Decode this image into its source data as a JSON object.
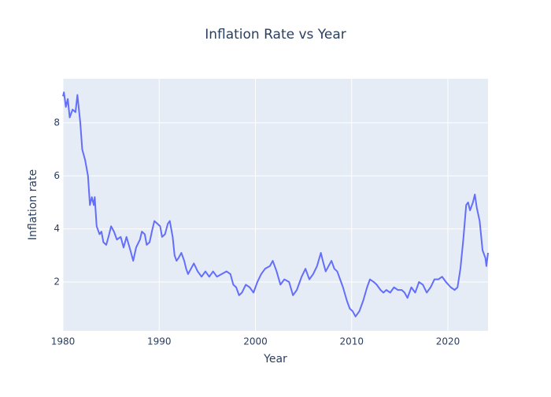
{
  "chart_data": {
    "type": "line",
    "title": "Inflation Rate vs Year",
    "x_label": "Year",
    "y_label": "Inflation rate",
    "x": [
      1980.0,
      1980.1,
      1980.3,
      1980.5,
      1980.7,
      1981.0,
      1981.3,
      1981.5,
      1981.8,
      1982.0,
      1982.3,
      1982.6,
      1982.8,
      1983.0,
      1983.2,
      1983.3,
      1983.5,
      1983.8,
      1984.0,
      1984.2,
      1984.5,
      1984.8,
      1985.0,
      1985.3,
      1985.6,
      1986.0,
      1986.3,
      1986.6,
      1987.0,
      1987.3,
      1987.6,
      1988.0,
      1988.2,
      1988.5,
      1988.7,
      1989.0,
      1989.3,
      1989.5,
      1989.8,
      1990.1,
      1990.3,
      1990.6,
      1990.9,
      1991.1,
      1991.4,
      1991.6,
      1991.8,
      1992.0,
      1992.3,
      1992.6,
      1992.8,
      1993.0,
      1993.3,
      1993.6,
      1994.0,
      1994.4,
      1994.8,
      1995.2,
      1995.6,
      1996.0,
      1996.5,
      1997.0,
      1997.4,
      1997.7,
      1998.0,
      1998.3,
      1998.6,
      1999.0,
      1999.4,
      1999.8,
      2000.2,
      2000.6,
      2001.0,
      2001.5,
      2001.8,
      2002.2,
      2002.6,
      2003.0,
      2003.5,
      2003.9,
      2004.3,
      2004.8,
      2005.2,
      2005.6,
      2006.0,
      2006.4,
      2006.8,
      2007.0,
      2007.3,
      2007.6,
      2007.9,
      2008.2,
      2008.5,
      2008.8,
      2009.1,
      2009.5,
      2009.8,
      2010.1,
      2010.4,
      2010.8,
      2011.2,
      2011.6,
      2011.9,
      2012.3,
      2012.6,
      2013.0,
      2013.3,
      2013.6,
      2014.0,
      2014.4,
      2014.8,
      2015.2,
      2015.5,
      2015.8,
      2016.2,
      2016.6,
      2017.0,
      2017.4,
      2017.8,
      2018.2,
      2018.6,
      2019.0,
      2019.4,
      2019.8,
      2020.3,
      2020.7,
      2021.0,
      2021.3,
      2021.6,
      2021.9,
      2022.1,
      2022.3,
      2022.6,
      2022.8,
      2023.0,
      2023.3,
      2023.6,
      2023.9,
      2024.0,
      2024.17
    ],
    "values": [
      9.0,
      9.15,
      8.6,
      8.9,
      8.2,
      8.5,
      8.4,
      9.05,
      8.0,
      7.0,
      6.6,
      6.0,
      4.9,
      5.2,
      4.9,
      5.2,
      4.1,
      3.8,
      3.9,
      3.5,
      3.4,
      3.8,
      4.1,
      3.9,
      3.6,
      3.7,
      3.3,
      3.7,
      3.2,
      2.8,
      3.3,
      3.6,
      3.9,
      3.8,
      3.4,
      3.5,
      4.0,
      4.3,
      4.2,
      4.1,
      3.7,
      3.8,
      4.2,
      4.3,
      3.7,
      3.0,
      2.8,
      2.9,
      3.1,
      2.8,
      2.5,
      2.3,
      2.5,
      2.7,
      2.4,
      2.2,
      2.4,
      2.2,
      2.4,
      2.2,
      2.3,
      2.4,
      2.3,
      1.9,
      1.8,
      1.5,
      1.6,
      1.9,
      1.8,
      1.6,
      2.0,
      2.3,
      2.5,
      2.6,
      2.8,
      2.4,
      1.9,
      2.1,
      2.0,
      1.5,
      1.7,
      2.2,
      2.5,
      2.1,
      2.3,
      2.6,
      3.1,
      2.8,
      2.4,
      2.6,
      2.8,
      2.5,
      2.4,
      2.1,
      1.8,
      1.3,
      1.0,
      0.9,
      0.7,
      0.9,
      1.3,
      1.8,
      2.1,
      2.0,
      1.9,
      1.7,
      1.6,
      1.7,
      1.6,
      1.8,
      1.7,
      1.7,
      1.6,
      1.4,
      1.8,
      1.6,
      2.0,
      1.9,
      1.6,
      1.8,
      2.1,
      2.1,
      2.2,
      2.0,
      1.8,
      1.7,
      1.8,
      2.5,
      3.6,
      4.9,
      5.0,
      4.7,
      5.0,
      5.3,
      4.8,
      4.3,
      3.2,
      2.9,
      2.6,
      3.1
    ],
    "color": "#636efa",
    "xlim": [
      1980,
      2024.17
    ],
    "ylim": [
      0.16,
      9.66
    ],
    "xticks": [
      1980,
      1990,
      2000,
      2010,
      2020
    ],
    "yticks": [
      2,
      4,
      6,
      8
    ],
    "grid": true
  }
}
